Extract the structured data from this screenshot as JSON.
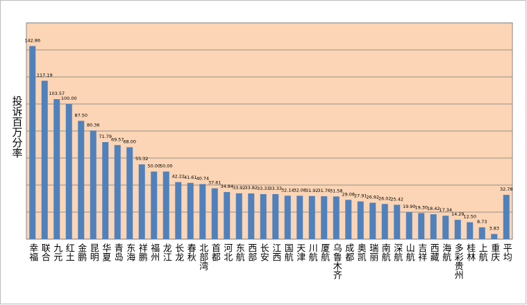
{
  "chart_data": {
    "type": "bar",
    "y_label": "投诉百万分率",
    "categories": [
      "幸福",
      "联合",
      "九元",
      "红土",
      "金鹏",
      "昆明",
      "华夏",
      "青岛",
      "东海",
      "祥鹏",
      "福州",
      "龙江",
      "长龙",
      "春秋",
      "北部湾",
      "首都",
      "河北",
      "东航",
      "西部",
      "长安",
      "江西",
      "国航",
      "天津",
      "川航",
      "厦航",
      "乌鲁木齐",
      "成都",
      "奥凯",
      "瑞丽",
      "南航",
      "深航",
      "山航",
      "吉祥",
      "西藏",
      "海航",
      "多彩贵州",
      "桂林",
      "上航",
      "重庆",
      "平均"
    ],
    "values": [
      142.86,
      117.19,
      103.57,
      100.0,
      87.5,
      80.36,
      71.79,
      69.57,
      68.0,
      55.32,
      50.0,
      50.0,
      42.22,
      41.61,
      40.74,
      37.61,
      34.84,
      33.92,
      33.82,
      33.33,
      33.33,
      32.14,
      32.08,
      31.92,
      31.76,
      31.58,
      29.08,
      27.91,
      26.92,
      26.02,
      25.42,
      19.9,
      19.3,
      18.42,
      17.34,
      14.29,
      12.5,
      8.73,
      3.83,
      32.78
    ],
    "value_labels": [
      "142.86",
      "117.19",
      "103.57",
      "100.00",
      "87.50",
      "80.36",
      "71.79",
      "69.57",
      "68.00",
      "55.32",
      "50.00",
      "50.00",
      "42.22",
      "41.61",
      "40.74",
      "37.61",
      "34.84",
      "33.92",
      "33.82",
      "33.33",
      "33.33",
      "32.14",
      "32.08",
      "31.92",
      "31.76",
      "31.58",
      "29.08",
      "27.91",
      "26.92",
      "26.02",
      "25.42",
      "19.90",
      "19.30",
      "18.42",
      "17.34",
      "14.29",
      "12.50",
      "8.73",
      "3.83",
      "32.78"
    ],
    "color": "#4f81bd",
    "plot_background": "#fbd5b5",
    "ylim": [
      0,
      160
    ],
    "yticks": [
      0,
      20,
      40,
      60,
      80,
      100,
      120,
      140,
      160
    ],
    "ytick_labels": false,
    "grid": true
  }
}
